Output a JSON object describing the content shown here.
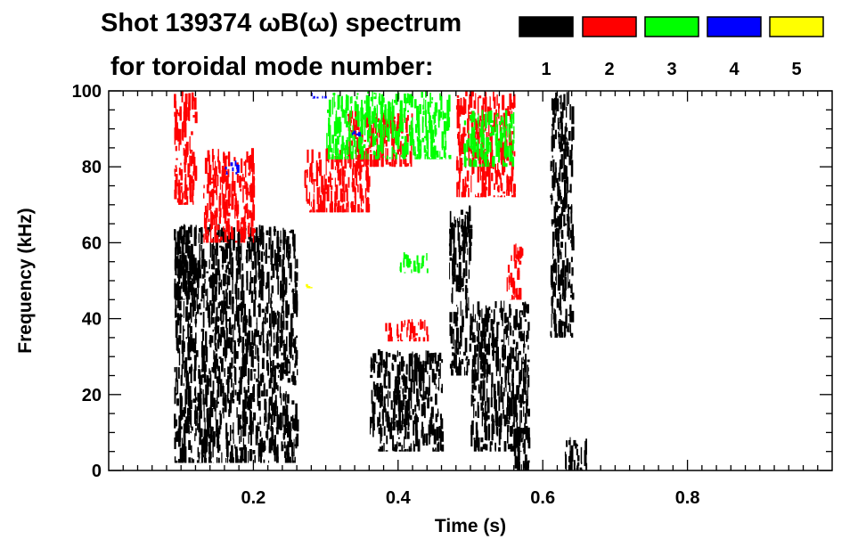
{
  "header": {
    "title_line1": "Shot 139374 ωB(ω) spectrum",
    "title_line2": "for toroidal mode number:"
  },
  "legend": [
    {
      "label": "1",
      "color": "#000000"
    },
    {
      "label": "2",
      "color": "#ff0000"
    },
    {
      "label": "3",
      "color": "#00ff00"
    },
    {
      "label": "4",
      "color": "#0000ff"
    },
    {
      "label": "5",
      "color": "#ffff00"
    }
  ],
  "chart_data": {
    "type": "heatmap",
    "title": "Shot 139374 ωB(ω) spectrum for toroidal mode number:",
    "xlabel": "Time (s)",
    "ylabel": "Frequency (kHz)",
    "xlim": [
      0.0,
      1.0
    ],
    "ylim": [
      0,
      100
    ],
    "xticks": [
      0.2,
      0.4,
      0.6,
      0.8
    ],
    "xtick_labels": [
      "0.2",
      "0.4",
      "0.6",
      "0.8"
    ],
    "yticks": [
      0,
      20,
      40,
      60,
      80,
      100
    ],
    "ytick_labels": [
      "0",
      "20",
      "40",
      "60",
      "80",
      "100"
    ],
    "grid": false,
    "series": [
      {
        "name": "1",
        "color": "#000000",
        "regions": [
          {
            "t": [
              0.09,
              0.12
            ],
            "f": [
              45,
              65
            ]
          },
          {
            "t": [
              0.09,
              0.26
            ],
            "f": [
              2,
              65
            ]
          },
          {
            "t": [
              0.36,
              0.46
            ],
            "f": [
              5,
              32
            ]
          },
          {
            "t": [
              0.47,
              0.5
            ],
            "f": [
              25,
              70
            ]
          },
          {
            "t": [
              0.5,
              0.58
            ],
            "f": [
              5,
              45
            ]
          },
          {
            "t": [
              0.56,
              0.58
            ],
            "f": [
              0,
              12
            ]
          },
          {
            "t": [
              0.61,
              0.64
            ],
            "f": [
              35,
              100
            ]
          },
          {
            "t": [
              0.63,
              0.66
            ],
            "f": [
              0,
              10
            ]
          }
        ]
      },
      {
        "name": "2",
        "color": "#ff0000",
        "regions": [
          {
            "t": [
              0.09,
              0.12
            ],
            "f": [
              70,
              100
            ]
          },
          {
            "t": [
              0.13,
              0.2
            ],
            "f": [
              60,
              85
            ]
          },
          {
            "t": [
              0.27,
              0.36
            ],
            "f": [
              68,
              85
            ]
          },
          {
            "t": [
              0.33,
              0.42
            ],
            "f": [
              80,
              95
            ]
          },
          {
            "t": [
              0.38,
              0.44
            ],
            "f": [
              34,
              40
            ]
          },
          {
            "t": [
              0.48,
              0.56
            ],
            "f": [
              72,
              100
            ]
          },
          {
            "t": [
              0.55,
              0.57
            ],
            "f": [
              45,
              60
            ]
          }
        ]
      },
      {
        "name": "3",
        "color": "#00ff00",
        "regions": [
          {
            "t": [
              0.3,
              0.47
            ],
            "f": [
              82,
              100
            ]
          },
          {
            "t": [
              0.4,
              0.44
            ],
            "f": [
              52,
              58
            ]
          },
          {
            "t": [
              0.49,
              0.56
            ],
            "f": [
              80,
              95
            ]
          }
        ]
      },
      {
        "name": "4",
        "color": "#0000ff",
        "regions": [
          {
            "t": [
              0.16,
              0.18
            ],
            "f": [
              78,
              82
            ]
          },
          {
            "t": [
              0.28,
              0.3
            ],
            "f": [
              98,
              100
            ]
          },
          {
            "t": [
              0.33,
              0.35
            ],
            "f": [
              88,
              90
            ]
          }
        ]
      },
      {
        "name": "5",
        "color": "#ffff00",
        "regions": [
          {
            "t": [
              0.27,
              0.28
            ],
            "f": [
              48,
              50
            ]
          }
        ]
      }
    ]
  }
}
